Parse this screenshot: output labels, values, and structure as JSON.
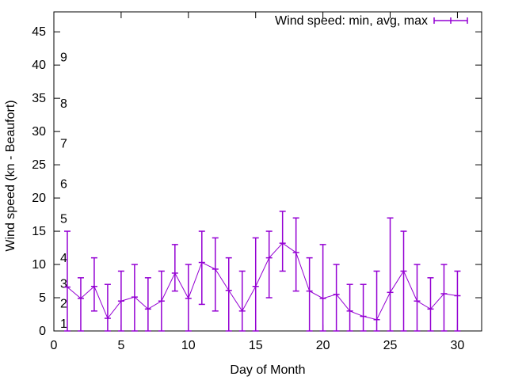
{
  "chart_data": {
    "type": "line",
    "title": "",
    "xlabel": "Day of Month",
    "ylabel": "Wind speed (kn - Beaufort)",
    "xlim": [
      0,
      31.8
    ],
    "ylim": [
      0,
      48
    ],
    "xticks": [
      0,
      5,
      10,
      15,
      20,
      25,
      30
    ],
    "yticks": [
      0,
      5,
      10,
      15,
      20,
      25,
      30,
      35,
      40,
      45
    ],
    "grid": false,
    "legend": {
      "placement": "top-right",
      "entries": [
        "Wind speed: min, avg, max"
      ]
    },
    "series": [
      {
        "name": "Wind speed: min, avg, max",
        "color": "#9400d3",
        "x": [
          1,
          2,
          3,
          4,
          5,
          6,
          7,
          8,
          9,
          10,
          11,
          12,
          13,
          14,
          15,
          16,
          17,
          18,
          19,
          20,
          21,
          22,
          23,
          24,
          25,
          26,
          27,
          28,
          29,
          30
        ],
        "avg": [
          6.6,
          4.9,
          6.7,
          1.9,
          4.5,
          5.1,
          3.3,
          4.5,
          8.7,
          4.9,
          10.3,
          9.3,
          6.1,
          3.0,
          6.7,
          11.0,
          13.2,
          11.8,
          6.0,
          4.9,
          5.5,
          3.0,
          2.2,
          1.7,
          5.8,
          9.0,
          4.5,
          3.3,
          5.6,
          5.3
        ],
        "min": [
          0,
          0,
          3,
          0,
          0,
          0,
          0,
          0,
          6,
          0,
          4,
          3,
          0,
          0,
          0,
          5,
          9,
          6,
          0,
          0,
          0,
          0,
          0,
          0,
          0,
          0,
          0,
          0,
          0,
          0
        ],
        "max": [
          15,
          8,
          11,
          7,
          9,
          10,
          8,
          9,
          13,
          10,
          15,
          14,
          11,
          9,
          14,
          15,
          18,
          17,
          11,
          13,
          10,
          7,
          7,
          9,
          17,
          15,
          10,
          8,
          10,
          9
        ]
      }
    ],
    "annotations": [
      {
        "text": "1",
        "y": 1.2
      },
      {
        "text": "2",
        "y": 4.2
      },
      {
        "text": "3",
        "y": 7.2
      },
      {
        "text": "4",
        "y": 11.1
      },
      {
        "text": "5",
        "y": 17.0
      },
      {
        "text": "6",
        "y": 22.2
      },
      {
        "text": "7",
        "y": 28.3
      },
      {
        "text": "8",
        "y": 34.3
      },
      {
        "text": "9",
        "y": 41.3
      }
    ]
  }
}
